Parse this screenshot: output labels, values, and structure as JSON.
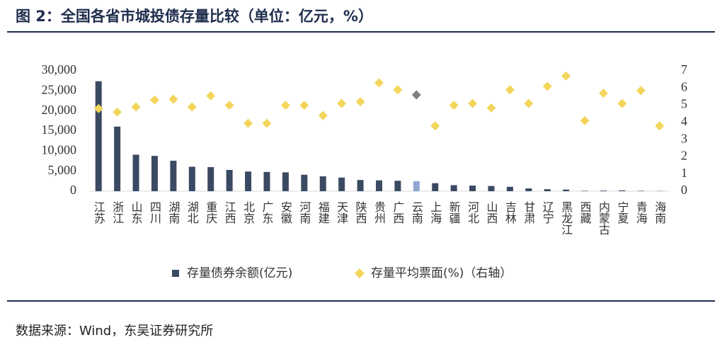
{
  "page_title": "图 2：全国各省市城投债存量比较（单位：亿元，%）",
  "source": "数据来源：Wind，东吴证券研究所",
  "chart_data": {
    "type": "bar",
    "categories": [
      "江苏",
      "浙江",
      "山东",
      "四川",
      "湖南",
      "湖北",
      "重庆",
      "江西",
      "北京",
      "广东",
      "安徽",
      "河南",
      "福建",
      "天津",
      "陕西",
      "贵州",
      "广西",
      "云南",
      "上海",
      "新疆",
      "河北",
      "山西",
      "吉林",
      "甘肃",
      "辽宁",
      "黑龙江",
      "西藏",
      "内蒙古",
      "宁夏",
      "青海",
      "海南"
    ],
    "series": [
      {
        "name": "存量债券余额(亿元)",
        "type": "bar",
        "color": "#3b4a63",
        "colors": [
          "#3b4a63",
          "#3b4a63",
          "#3b4a63",
          "#3b4a63",
          "#3b4a63",
          "#3b4a63",
          "#3b4a63",
          "#3b4a63",
          "#3b4a63",
          "#3b4a63",
          "#3b4a63",
          "#3b4a63",
          "#3b4a63",
          "#3b4a63",
          "#3b4a63",
          "#3b4a63",
          "#3b4a63",
          "#8fa8d0",
          "#3b4a63",
          "#3b4a63",
          "#3b4a63",
          "#3b4a63",
          "#3b4a63",
          "#3b4a63",
          "#3b4a63",
          "#3b4a63",
          "#3b4a63",
          "#3b4a63",
          "#3b4a63",
          "#3b4a63",
          "#3b4a63"
        ],
        "values": [
          27400,
          16100,
          9100,
          8800,
          7600,
          6100,
          6000,
          5300,
          4900,
          4800,
          4700,
          4100,
          3700,
          3400,
          2800,
          2700,
          2600,
          2500,
          2000,
          1500,
          1400,
          1300,
          1100,
          700,
          500,
          400,
          100,
          150,
          200,
          100,
          50
        ]
      },
      {
        "name": "存量平均票面(%)（右轴）",
        "type": "scatter",
        "axis": "y2",
        "color": "#f2d65c",
        "colors": [
          "#f2d65c",
          "#f2d65c",
          "#f2d65c",
          "#f2d65c",
          "#f2d65c",
          "#f2d65c",
          "#f2d65c",
          "#f2d65c",
          "#f2d65c",
          "#f2d65c",
          "#f2d65c",
          "#f2d65c",
          "#f2d65c",
          "#f2d65c",
          "#f2d65c",
          "#f2d65c",
          "#f2d65c",
          "#7f7f7f",
          "#f2d65c",
          "#f2d65c",
          "#f2d65c",
          "#f2d65c",
          "#f2d65c",
          "#f2d65c",
          "#f2d65c",
          "#f2d65c",
          "#f2d65c",
          "#f2d65c",
          "#f2d65c",
          "#f2d65c",
          "#f2d65c"
        ],
        "values": [
          4.8,
          4.6,
          4.9,
          5.3,
          5.35,
          4.9,
          5.55,
          5.0,
          3.95,
          3.95,
          5.0,
          5.0,
          4.4,
          5.1,
          5.2,
          6.3,
          5.9,
          5.6,
          3.8,
          5.0,
          5.1,
          4.85,
          5.9,
          5.1,
          6.1,
          6.7,
          4.1,
          5.7,
          5.1,
          5.85,
          3.8
        ]
      }
    ],
    "ylim": [
      0,
      30000
    ],
    "yticks": [
      0,
      {
        "value": 5000,
        "label": "5,000"
      },
      {
        "value": 10000,
        "label": "10,000"
      },
      {
        "value": 15000,
        "label": "15,000"
      },
      {
        "value": 20000,
        "label": "20,000"
      },
      {
        "value": 25000,
        "label": "25,000"
      },
      {
        "value": 30000,
        "label": "30,000"
      }
    ],
    "y2lim": [
      0,
      7
    ],
    "y2ticks": [
      0,
      1,
      2,
      3,
      4,
      5,
      6,
      7
    ],
    "grid": false,
    "legend": "bottom"
  }
}
